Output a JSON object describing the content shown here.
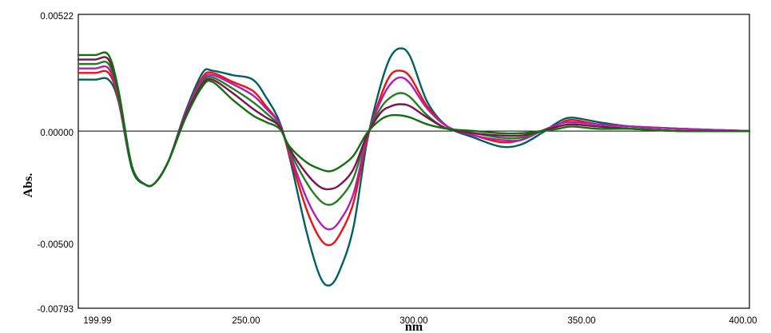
{
  "chart_data": {
    "type": "line",
    "title": "",
    "xlabel": "nm",
    "ylabel": "Abs.",
    "xlim": [
      199.99,
      400.0
    ],
    "ylim": [
      -0.00793,
      0.00522
    ],
    "x_tick_labels": [
      "199.99",
      "250.00",
      "300.00",
      "350.00",
      "400.00"
    ],
    "y_tick_labels": [
      "0.00522",
      "0.00000",
      "-0.00500",
      "-0.00793"
    ],
    "zero_line": true,
    "grid": false,
    "legend": "none",
    "series": [
      {
        "color": "#006060",
        "x": [
          200,
          205,
          209,
          212,
          216,
          220,
          223,
          227,
          232,
          237,
          240,
          246,
          252,
          256,
          260,
          263,
          268,
          272,
          275,
          278,
          282,
          286,
          290,
          293,
          296,
          299,
          304,
          310,
          318,
          326,
          332,
          338,
          343,
          347,
          355,
          365,
          380,
          400
        ],
        "y": [
          0.0023,
          0.0023,
          0.0023,
          0.0013,
          -0.0017,
          -0.0024,
          -0.0023,
          -0.0013,
          0.0009,
          0.0026,
          0.0027,
          0.0025,
          0.0023,
          0.0015,
          0.0004,
          -0.0012,
          -0.0045,
          -0.0065,
          -0.0069,
          -0.0062,
          -0.0043,
          -0.0005,
          0.002,
          0.0033,
          0.0037,
          0.0033,
          0.0013,
          0.0002,
          -0.0003,
          -0.0007,
          -0.0006,
          -0.0001,
          0.0004,
          0.0006,
          0.0004,
          0.0002,
          0.0001,
          0.0
        ]
      },
      {
        "color": "#ee1111",
        "x": [
          200,
          205,
          209,
          212,
          216,
          220,
          223,
          227,
          232,
          237,
          240,
          246,
          252,
          256,
          260,
          263,
          268,
          272,
          275,
          278,
          282,
          286,
          290,
          293,
          296,
          299,
          304,
          310,
          318,
          326,
          332,
          338,
          343,
          347,
          355,
          365,
          380,
          400
        ],
        "y": [
          0.0026,
          0.0026,
          0.0026,
          0.0014,
          -0.0016,
          -0.0024,
          -0.0023,
          -0.0013,
          0.0008,
          0.0024,
          0.0026,
          0.0022,
          0.0018,
          0.0011,
          0.0003,
          -0.0011,
          -0.0035,
          -0.0048,
          -0.0051,
          -0.0046,
          -0.0032,
          -0.0004,
          0.0015,
          0.0025,
          0.0027,
          0.0024,
          0.0011,
          0.0002,
          -0.0002,
          -0.0005,
          -0.0004,
          0.0,
          0.0003,
          0.0005,
          0.0003,
          0.0002,
          0.0001,
          0.0
        ]
      },
      {
        "color": "#b020b0",
        "x": [
          200,
          205,
          209,
          212,
          216,
          220,
          223,
          227,
          232,
          237,
          240,
          246,
          252,
          256,
          260,
          263,
          268,
          272,
          275,
          278,
          282,
          286,
          290,
          293,
          296,
          299,
          304,
          310,
          318,
          326,
          332,
          338,
          343,
          347,
          355,
          365,
          380,
          400
        ],
        "y": [
          0.0028,
          0.0028,
          0.0028,
          0.0015,
          -0.0016,
          -0.0024,
          -0.0023,
          -0.0013,
          0.0008,
          0.0023,
          0.0025,
          0.0021,
          0.0016,
          0.001,
          0.0003,
          -0.001,
          -0.003,
          -0.0041,
          -0.0044,
          -0.004,
          -0.0028,
          -0.0003,
          0.0013,
          0.0021,
          0.0024,
          0.0021,
          0.001,
          0.0002,
          -0.0002,
          -0.0004,
          -0.0004,
          0.0,
          0.0003,
          0.0004,
          0.0003,
          0.0002,
          0.0001,
          0.0
        ]
      },
      {
        "color": "#208020",
        "x": [
          200,
          205,
          209,
          212,
          216,
          220,
          223,
          227,
          232,
          237,
          240,
          246,
          252,
          256,
          260,
          263,
          268,
          272,
          275,
          278,
          282,
          286,
          290,
          293,
          296,
          299,
          304,
          310,
          318,
          326,
          332,
          338,
          343,
          347,
          355,
          365,
          380,
          400
        ],
        "y": [
          0.003,
          0.003,
          0.003,
          0.0016,
          -0.0016,
          -0.0024,
          -0.0023,
          -0.0013,
          0.0007,
          0.0022,
          0.0024,
          0.0019,
          0.0013,
          0.0008,
          0.0002,
          -0.0009,
          -0.0023,
          -0.0031,
          -0.0033,
          -0.003,
          -0.0021,
          -0.0002,
          0.001,
          0.0015,
          0.0017,
          0.0015,
          0.0007,
          0.0001,
          -0.0001,
          -0.0003,
          -0.0003,
          0.0,
          0.0002,
          0.0003,
          0.0002,
          0.0001,
          0.0,
          0.0
        ]
      },
      {
        "color": "#801050",
        "x": [
          200,
          205,
          209,
          212,
          216,
          220,
          223,
          227,
          232,
          237,
          240,
          246,
          252,
          256,
          260,
          263,
          268,
          272,
          275,
          278,
          282,
          286,
          290,
          293,
          296,
          299,
          304,
          310,
          318,
          326,
          332,
          338,
          343,
          347,
          355,
          365,
          380,
          400
        ],
        "y": [
          0.0032,
          0.0032,
          0.0032,
          0.0017,
          -0.0016,
          -0.0024,
          -0.0023,
          -0.0013,
          0.0007,
          0.0021,
          0.0023,
          0.0017,
          0.001,
          0.0006,
          0.0002,
          -0.0008,
          -0.0019,
          -0.0025,
          -0.0026,
          -0.0024,
          -0.0017,
          -0.0002,
          0.0008,
          0.0011,
          0.0012,
          0.0011,
          0.0006,
          0.0001,
          -0.0001,
          -0.0002,
          -0.0002,
          0.0,
          0.0002,
          0.0003,
          0.0002,
          0.0001,
          0.0,
          0.0
        ]
      },
      {
        "color": "#107010",
        "x": [
          200,
          205,
          209,
          212,
          216,
          220,
          223,
          227,
          232,
          237,
          240,
          246,
          252,
          256,
          260,
          263,
          268,
          272,
          275,
          278,
          282,
          286,
          290,
          293,
          296,
          299,
          304,
          310,
          318,
          326,
          332,
          338,
          343,
          347,
          355,
          365,
          380,
          400
        ],
        "y": [
          0.0034,
          0.0034,
          0.0034,
          0.0018,
          -0.0016,
          -0.0024,
          -0.0023,
          -0.0013,
          0.0006,
          0.002,
          0.0022,
          0.0014,
          0.0007,
          0.0004,
          0.0001,
          -0.0007,
          -0.0014,
          -0.0017,
          -0.0018,
          -0.0016,
          -0.0011,
          -0.0001,
          0.0005,
          0.0007,
          0.0007,
          0.0006,
          0.0003,
          0.0001,
          0.0,
          -0.0001,
          -0.0001,
          0.0,
          0.0001,
          0.0002,
          0.0001,
          0.0001,
          0.0,
          0.0
        ]
      }
    ]
  }
}
